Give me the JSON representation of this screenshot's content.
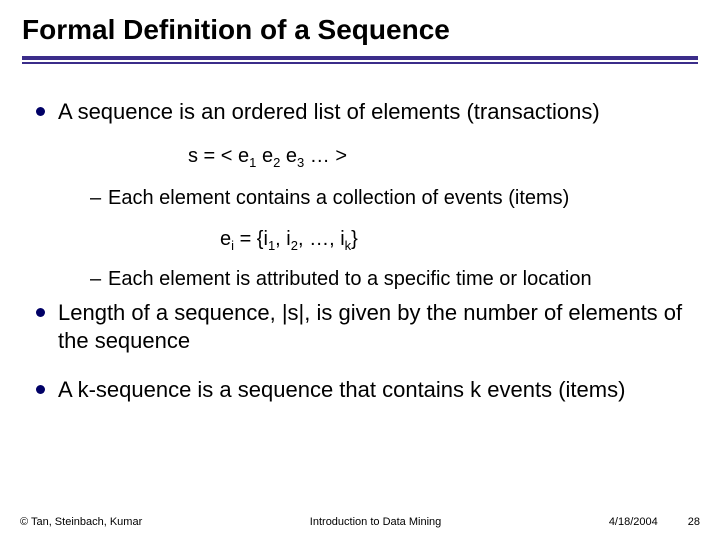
{
  "title": "Formal Definition of a Sequence",
  "colors": {
    "rule": "#3b2d8a",
    "bullet": "#000066",
    "background": "#ffffff",
    "text": "#000000"
  },
  "typography": {
    "title_fontsize": 28,
    "body_fontsize": 22,
    "sub_fontsize": 20,
    "footer_fontsize": 11
  },
  "bullets": {
    "b1": "A sequence is an ordered list of elements (transactions)",
    "seq_formula": {
      "lhs": "s = < e",
      "s1": "1",
      "mid1": " e",
      "s2": "2",
      "mid2": " e",
      "s3": "3",
      "tail": " … >"
    },
    "b1a": "Each element contains a collection of events (items)",
    "elem_formula": {
      "lhs": "e",
      "si": "i",
      "eq": " = {i",
      "s1": "1",
      "c1": ", i",
      "s2": "2",
      "c2": ", …, i",
      "sk": "k",
      "tail": "}"
    },
    "b1b": "Each element is attributed to a specific time or location",
    "b2": "Length of a sequence, |s|, is given by the number of elements of the sequence",
    "b3": "A k-sequence is a sequence that contains k events (items)"
  },
  "footer": {
    "authors": "© Tan, Steinbach, Kumar",
    "course": "Introduction to Data Mining",
    "date": "4/18/2004",
    "page": "28"
  }
}
